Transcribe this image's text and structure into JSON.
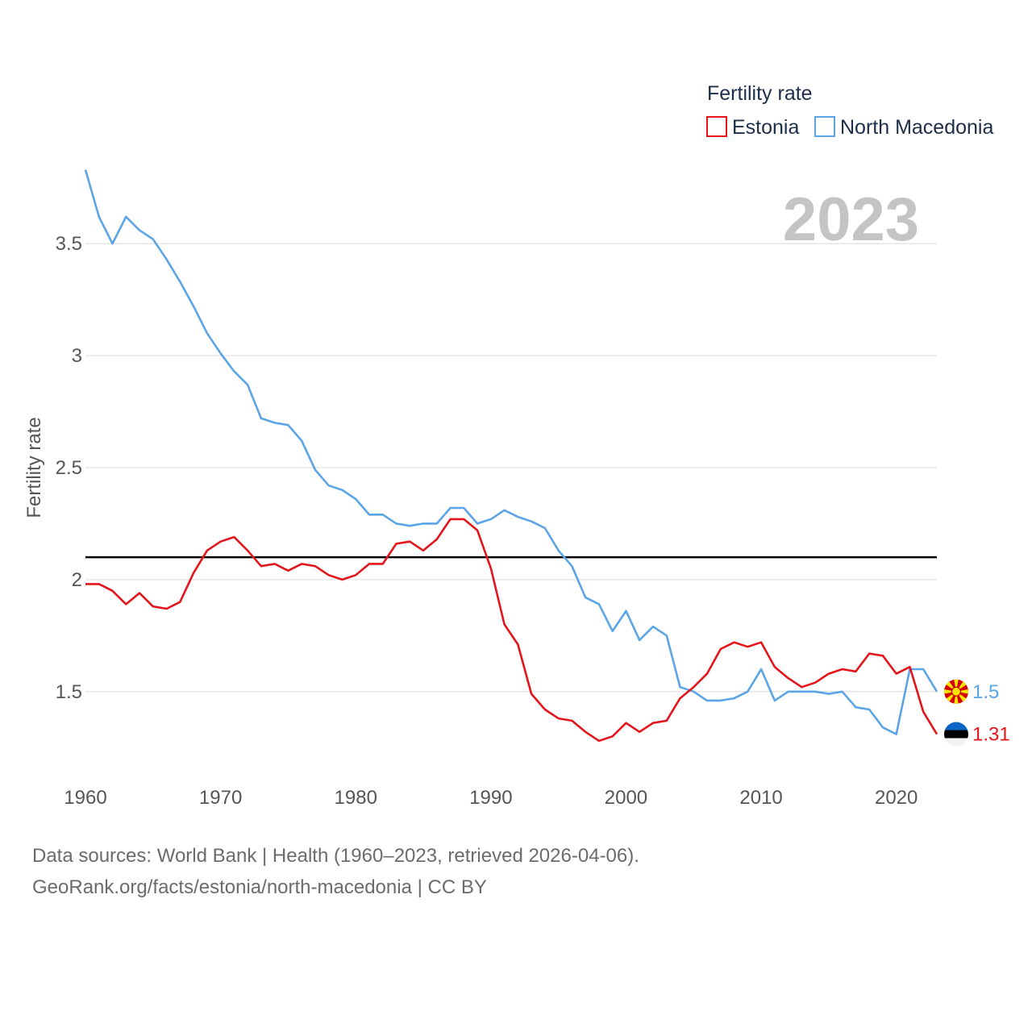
{
  "chart_data": {
    "type": "line",
    "year_label": "2023",
    "legend_title": "Fertility rate",
    "ylabel": "Fertility rate",
    "xlabel": "",
    "x": [
      1960,
      1961,
      1962,
      1963,
      1964,
      1965,
      1966,
      1967,
      1968,
      1969,
      1970,
      1971,
      1972,
      1973,
      1974,
      1975,
      1976,
      1977,
      1978,
      1979,
      1980,
      1981,
      1982,
      1983,
      1984,
      1985,
      1986,
      1987,
      1988,
      1989,
      1990,
      1991,
      1992,
      1993,
      1994,
      1995,
      1996,
      1997,
      1998,
      1999,
      2000,
      2001,
      2002,
      2003,
      2004,
      2005,
      2006,
      2007,
      2008,
      2009,
      2010,
      2011,
      2012,
      2013,
      2014,
      2015,
      2016,
      2017,
      2018,
      2019,
      2020,
      2021,
      2022,
      2023
    ],
    "xlim": [
      1960,
      2023
    ],
    "ylim": [
      1.15,
      3.85
    ],
    "x_ticks": [
      1960,
      1970,
      1980,
      1990,
      2000,
      2010,
      2020
    ],
    "y_ticks": [
      1.5,
      2,
      2.5,
      3,
      3.5
    ],
    "y_tick_labels": [
      "1.5",
      "2",
      "2.5",
      "3",
      "3.5"
    ],
    "reference_line": 2.1,
    "series": [
      {
        "name": "Estonia",
        "color": "#e4151a",
        "end_label": "1.31",
        "flag": "estonia-flag",
        "values": [
          1.98,
          1.98,
          1.95,
          1.89,
          1.94,
          1.88,
          1.87,
          1.9,
          2.03,
          2.13,
          2.17,
          2.19,
          2.13,
          2.06,
          2.07,
          2.04,
          2.07,
          2.06,
          2.02,
          2.0,
          2.02,
          2.07,
          2.07,
          2.16,
          2.17,
          2.13,
          2.18,
          2.27,
          2.27,
          2.22,
          2.05,
          1.8,
          1.71,
          1.49,
          1.42,
          1.38,
          1.37,
          1.32,
          1.28,
          1.3,
          1.36,
          1.32,
          1.36,
          1.37,
          1.47,
          1.52,
          1.58,
          1.69,
          1.72,
          1.7,
          1.72,
          1.61,
          1.56,
          1.52,
          1.54,
          1.58,
          1.6,
          1.59,
          1.67,
          1.66,
          1.58,
          1.61,
          1.41,
          1.31
        ]
      },
      {
        "name": "North Macedonia",
        "color": "#5ba4e5",
        "end_label": "1.5",
        "flag": "north-macedonia-flag",
        "values": [
          3.83,
          3.62,
          3.5,
          3.62,
          3.56,
          3.52,
          3.43,
          3.33,
          3.22,
          3.1,
          3.01,
          2.93,
          2.87,
          2.72,
          2.7,
          2.69,
          2.62,
          2.49,
          2.42,
          2.4,
          2.36,
          2.29,
          2.29,
          2.25,
          2.24,
          2.25,
          2.25,
          2.32,
          2.32,
          2.25,
          2.27,
          2.31,
          2.28,
          2.26,
          2.23,
          2.13,
          2.06,
          1.92,
          1.89,
          1.77,
          1.86,
          1.73,
          1.79,
          1.75,
          1.52,
          1.5,
          1.46,
          1.46,
          1.47,
          1.5,
          1.6,
          1.46,
          1.5,
          1.5,
          1.5,
          1.49,
          1.5,
          1.43,
          1.42,
          1.34,
          1.31,
          1.6,
          1.6,
          1.5
        ]
      }
    ]
  },
  "footer": {
    "line1": "Data sources: World Bank | Health (1960–2023, retrieved 2026-04-06).",
    "line2": "GeoRank.org/facts/estonia/north-macedonia | CC BY"
  }
}
